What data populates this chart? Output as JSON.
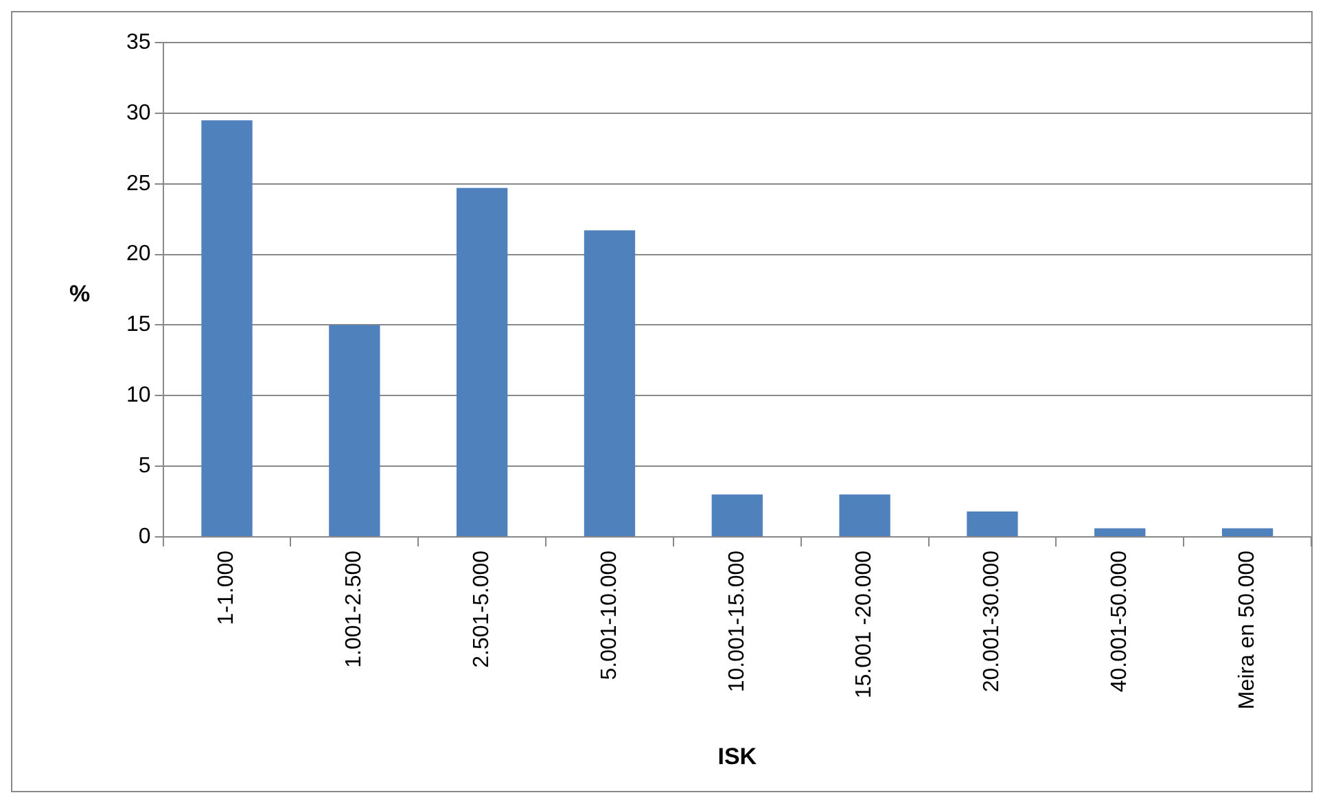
{
  "chart_data": {
    "type": "bar",
    "xlabel": "ISK",
    "ylabel": "%",
    "categories": [
      "1-1.000",
      "1.001-2.500",
      "2.501-5.000",
      "5.001-10.000",
      "10.001-15.000",
      "15.001 -20.000",
      "20.001-30.000",
      "40.001-50.000",
      "Meira en 50.000"
    ],
    "values": [
      29.5,
      15.0,
      24.7,
      21.7,
      3.0,
      3.0,
      1.8,
      0.6,
      0.6
    ],
    "color": "#4f81bd",
    "ylim": [
      0,
      35
    ],
    "yticks": [
      0,
      5,
      10,
      15,
      20,
      25,
      30,
      35
    ],
    "grid": "y",
    "legend": false
  }
}
